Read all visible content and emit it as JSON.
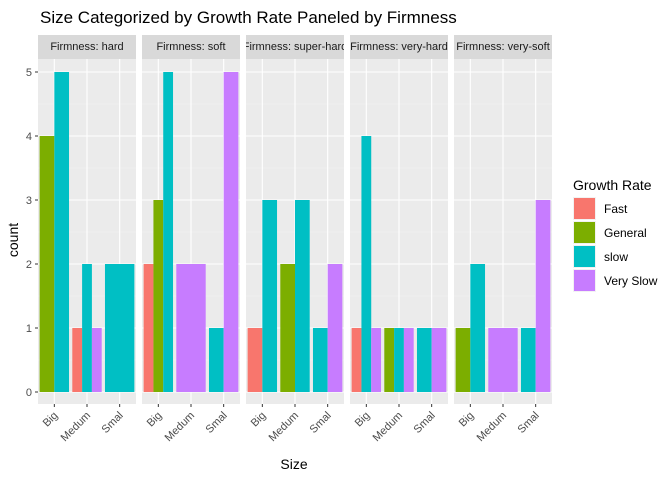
{
  "chart_data": {
    "type": "bar",
    "title": "Size Categorized by Growth Rate Paneled by Firmness",
    "xlabel": "Size",
    "ylabel": "count",
    "ylim": [
      0,
      5.4
    ],
    "y_ticks": [
      0,
      1,
      2,
      3,
      4,
      5
    ],
    "categories": [
      "Big",
      "Medium",
      "Small"
    ],
    "category_tick_labels": [
      "Big",
      "Medum",
      "Smal"
    ],
    "legend": {
      "title": "Growth Rate",
      "placement": "right",
      "entries": [
        {
          "name": "Fast",
          "color": "#F8766D"
        },
        {
          "name": "General",
          "color": "#7CAE00"
        },
        {
          "name": "slow",
          "color": "#00BFC4"
        },
        {
          "name": "Very Slow",
          "color": "#C77CFF"
        }
      ]
    },
    "panels": [
      {
        "strip": "Firmness: hard",
        "bars": [
          {
            "category": "Big",
            "groups": [
              {
                "series": "General",
                "value": 4
              },
              {
                "series": "slow",
                "value": 5
              }
            ]
          },
          {
            "category": "Medium",
            "groups": [
              {
                "series": "Fast",
                "value": 1
              },
              {
                "series": "slow",
                "value": 2
              },
              {
                "series": "Very Slow",
                "value": 1
              }
            ]
          },
          {
            "category": "Small",
            "groups": [
              {
                "series": "slow",
                "value": 2
              }
            ]
          }
        ]
      },
      {
        "strip": "Firmness: soft",
        "bars": [
          {
            "category": "Big",
            "groups": [
              {
                "series": "Fast",
                "value": 2
              },
              {
                "series": "General",
                "value": 3
              },
              {
                "series": "slow",
                "value": 5
              }
            ]
          },
          {
            "category": "Medium",
            "groups": [
              {
                "series": "Very Slow",
                "value": 2
              }
            ]
          },
          {
            "category": "Small",
            "groups": [
              {
                "series": "slow",
                "value": 1
              },
              {
                "series": "Very Slow",
                "value": 5
              }
            ]
          }
        ]
      },
      {
        "strip": "Firmness: super-hard",
        "bars": [
          {
            "category": "Big",
            "groups": [
              {
                "series": "Fast",
                "value": 1
              },
              {
                "series": "slow",
                "value": 3
              }
            ]
          },
          {
            "category": "Medium",
            "groups": [
              {
                "series": "General",
                "value": 2
              },
              {
                "series": "slow",
                "value": 3
              }
            ]
          },
          {
            "category": "Small",
            "groups": [
              {
                "series": "slow",
                "value": 1
              },
              {
                "series": "Very Slow",
                "value": 2
              }
            ]
          }
        ]
      },
      {
        "strip": "Firmness: very-hard",
        "bars": [
          {
            "category": "Big",
            "groups": [
              {
                "series": "Fast",
                "value": 1
              },
              {
                "series": "slow",
                "value": 4
              },
              {
                "series": "Very Slow",
                "value": 1
              }
            ]
          },
          {
            "category": "Medium",
            "groups": [
              {
                "series": "General",
                "value": 1
              },
              {
                "series": "slow",
                "value": 1
              },
              {
                "series": "Very Slow",
                "value": 1
              }
            ]
          },
          {
            "category": "Small",
            "groups": [
              {
                "series": "slow",
                "value": 1
              },
              {
                "series": "Very Slow",
                "value": 1
              }
            ]
          }
        ]
      },
      {
        "strip": "Firmness: very-soft",
        "bars": [
          {
            "category": "Big",
            "groups": [
              {
                "series": "General",
                "value": 1
              },
              {
                "series": "slow",
                "value": 2
              }
            ]
          },
          {
            "category": "Medium",
            "groups": [
              {
                "series": "Very Slow",
                "value": 1
              }
            ]
          },
          {
            "category": "Small",
            "groups": [
              {
                "series": "slow",
                "value": 1
              },
              {
                "series": "Very Slow",
                "value": 3
              }
            ]
          }
        ]
      }
    ]
  }
}
